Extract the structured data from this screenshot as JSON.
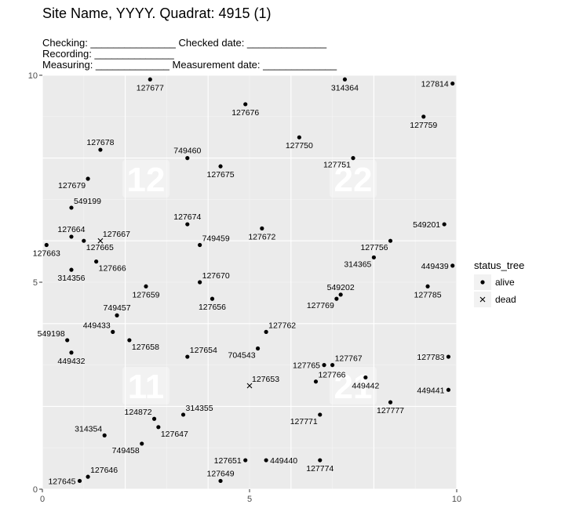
{
  "colors": {
    "panel_bg": "#ebebeb",
    "grid_major": "#ffffff",
    "grid_minor": "#f5f5f5",
    "point": "#000000",
    "tick_text": "#4d4d4d"
  },
  "chart_data": {
    "type": "scatter",
    "title": "Site Name, YYYY. Quadrat: 4915 (1)",
    "form_lines": [
      "Checking: _______________ Checked date: ______________",
      "Recording: ______________",
      "Measuring: _____________ Measurement date: _____________"
    ],
    "xlim": [
      0,
      10
    ],
    "ylim": [
      0,
      10
    ],
    "x_ticks": [
      0,
      5,
      10
    ],
    "y_ticks": [
      0,
      5,
      10
    ],
    "x_tick_labels": [
      "0",
      "5",
      "10"
    ],
    "y_tick_labels": [
      "0",
      "5",
      "10"
    ],
    "grid": true,
    "legend": {
      "title": "status_tree",
      "position": "right",
      "entries": [
        {
          "label": "alive",
          "shape": "dot"
        },
        {
          "label": "dead",
          "shape": "cross"
        }
      ]
    },
    "subquadrat_labels": [
      {
        "label": "12",
        "x": 2.5,
        "y": 7.5
      },
      {
        "label": "22",
        "x": 7.5,
        "y": 7.5
      },
      {
        "label": "11",
        "x": 2.5,
        "y": 2.5
      },
      {
        "label": "21",
        "x": 7.5,
        "y": 2.5
      }
    ],
    "points": [
      {
        "tag": "127677",
        "x": 2.6,
        "y": 9.9,
        "status": "alive",
        "label_pos": "below"
      },
      {
        "tag": "314364",
        "x": 7.3,
        "y": 9.9,
        "status": "alive",
        "label_pos": "below"
      },
      {
        "tag": "127814",
        "x": 9.9,
        "y": 9.8,
        "status": "alive",
        "label_pos": "left"
      },
      {
        "tag": "127676",
        "x": 4.9,
        "y": 9.3,
        "status": "alive",
        "label_pos": "below"
      },
      {
        "tag": "127759",
        "x": 9.2,
        "y": 9.0,
        "status": "alive",
        "label_pos": "below"
      },
      {
        "tag": "127750",
        "x": 6.2,
        "y": 8.5,
        "status": "alive",
        "label_pos": "below"
      },
      {
        "tag": "127678",
        "x": 1.4,
        "y": 8.2,
        "status": "alive",
        "label_pos": "above"
      },
      {
        "tag": "749460",
        "x": 3.5,
        "y": 8.0,
        "status": "alive",
        "label_pos": "above"
      },
      {
        "tag": "127751",
        "x": 7.5,
        "y": 8.0,
        "status": "alive",
        "label_pos": "below-left"
      },
      {
        "tag": "127675",
        "x": 4.3,
        "y": 7.8,
        "status": "alive",
        "label_pos": "below"
      },
      {
        "tag": "127679",
        "x": 1.1,
        "y": 7.5,
        "status": "alive",
        "label_pos": "below-left"
      },
      {
        "tag": "549199",
        "x": 0.7,
        "y": 6.8,
        "status": "alive",
        "label_pos": "above-right"
      },
      {
        "tag": "127674",
        "x": 3.5,
        "y": 6.4,
        "status": "alive",
        "label_pos": "above"
      },
      {
        "tag": "127672",
        "x": 5.3,
        "y": 6.3,
        "status": "alive",
        "label_pos": "below"
      },
      {
        "tag": "549201",
        "x": 9.7,
        "y": 6.4,
        "status": "alive",
        "label_pos": "left"
      },
      {
        "tag": "127664",
        "x": 0.7,
        "y": 6.1,
        "status": "alive",
        "label_pos": "above"
      },
      {
        "tag": "749459",
        "x": 3.8,
        "y": 5.9,
        "status": "alive",
        "label_pos": "above-right"
      },
      {
        "tag": "127756",
        "x": 8.4,
        "y": 6.0,
        "status": "alive",
        "label_pos": "below-left"
      },
      {
        "tag": "127667",
        "x": 1.4,
        "y": 6.0,
        "status": "dead",
        "label_pos": "above-right"
      },
      {
        "tag": "127665",
        "x": 1.0,
        "y": 6.0,
        "status": "alive",
        "label_pos": "below-right"
      },
      {
        "tag": "127663",
        "x": 0.1,
        "y": 5.9,
        "status": "alive",
        "label_pos": "below"
      },
      {
        "tag": "314365",
        "x": 8.0,
        "y": 5.6,
        "status": "alive",
        "label_pos": "below-left"
      },
      {
        "tag": "127666",
        "x": 1.3,
        "y": 5.5,
        "status": "alive",
        "label_pos": "below-right"
      },
      {
        "tag": "449439",
        "x": 9.9,
        "y": 5.4,
        "status": "alive",
        "label_pos": "left"
      },
      {
        "tag": "314356",
        "x": 0.7,
        "y": 5.3,
        "status": "alive",
        "label_pos": "below"
      },
      {
        "tag": "127670",
        "x": 3.8,
        "y": 5.0,
        "status": "alive",
        "label_pos": "above-right"
      },
      {
        "tag": "127659",
        "x": 2.5,
        "y": 4.9,
        "status": "alive",
        "label_pos": "below"
      },
      {
        "tag": "127785",
        "x": 9.3,
        "y": 4.9,
        "status": "alive",
        "label_pos": "below"
      },
      {
        "tag": "549202",
        "x": 7.2,
        "y": 4.7,
        "status": "alive",
        "label_pos": "above"
      },
      {
        "tag": "127656",
        "x": 4.1,
        "y": 4.6,
        "status": "alive",
        "label_pos": "below"
      },
      {
        "tag": "127769",
        "x": 7.1,
        "y": 4.6,
        "status": "alive",
        "label_pos": "below-left"
      },
      {
        "tag": "749457",
        "x": 1.8,
        "y": 4.2,
        "status": "alive",
        "label_pos": "above"
      },
      {
        "tag": "449433",
        "x": 1.7,
        "y": 3.8,
        "status": "alive",
        "label_pos": "above-left"
      },
      {
        "tag": "127762",
        "x": 5.4,
        "y": 3.8,
        "status": "alive",
        "label_pos": "above-right"
      },
      {
        "tag": "549198",
        "x": 0.6,
        "y": 3.6,
        "status": "alive",
        "label_pos": "above-left"
      },
      {
        "tag": "127658",
        "x": 2.1,
        "y": 3.6,
        "status": "alive",
        "label_pos": "below-right"
      },
      {
        "tag": "704543",
        "x": 5.2,
        "y": 3.4,
        "status": "alive",
        "label_pos": "below-left"
      },
      {
        "tag": "449432",
        "x": 0.7,
        "y": 3.3,
        "status": "alive",
        "label_pos": "below"
      },
      {
        "tag": "127654",
        "x": 3.5,
        "y": 3.2,
        "status": "alive",
        "label_pos": "above-right"
      },
      {
        "tag": "127783",
        "x": 9.8,
        "y": 3.2,
        "status": "alive",
        "label_pos": "left"
      },
      {
        "tag": "127765",
        "x": 6.8,
        "y": 3.0,
        "status": "alive",
        "label_pos": "left"
      },
      {
        "tag": "127767",
        "x": 7.0,
        "y": 3.0,
        "status": "alive",
        "label_pos": "above-right"
      },
      {
        "tag": "127766",
        "x": 6.6,
        "y": 2.6,
        "status": "alive",
        "label_pos": "above-right"
      },
      {
        "tag": "449442",
        "x": 7.8,
        "y": 2.7,
        "status": "alive",
        "label_pos": "below"
      },
      {
        "tag": "127653",
        "x": 5.0,
        "y": 2.5,
        "status": "dead",
        "label_pos": "above-right"
      },
      {
        "tag": "449441",
        "x": 9.8,
        "y": 2.4,
        "status": "alive",
        "label_pos": "left"
      },
      {
        "tag": "127777",
        "x": 8.4,
        "y": 2.1,
        "status": "alive",
        "label_pos": "below"
      },
      {
        "tag": "314355",
        "x": 3.4,
        "y": 1.8,
        "status": "alive",
        "label_pos": "above-right"
      },
      {
        "tag": "127771",
        "x": 6.7,
        "y": 1.8,
        "status": "alive",
        "label_pos": "below-left"
      },
      {
        "tag": "124872",
        "x": 2.7,
        "y": 1.7,
        "status": "alive",
        "label_pos": "above-left"
      },
      {
        "tag": "127647",
        "x": 2.8,
        "y": 1.5,
        "status": "alive",
        "label_pos": "below-right"
      },
      {
        "tag": "314354",
        "x": 1.5,
        "y": 1.3,
        "status": "alive",
        "label_pos": "above-left"
      },
      {
        "tag": "749458",
        "x": 2.4,
        "y": 1.1,
        "status": "alive",
        "label_pos": "below-left"
      },
      {
        "tag": "127651",
        "x": 4.9,
        "y": 0.7,
        "status": "alive",
        "label_pos": "left"
      },
      {
        "tag": "449440",
        "x": 5.4,
        "y": 0.7,
        "status": "alive",
        "label_pos": "right"
      },
      {
        "tag": "127774",
        "x": 6.7,
        "y": 0.7,
        "status": "alive",
        "label_pos": "below"
      },
      {
        "tag": "127646",
        "x": 1.1,
        "y": 0.3,
        "status": "alive",
        "label_pos": "above-right"
      },
      {
        "tag": "127649",
        "x": 4.3,
        "y": 0.2,
        "status": "alive",
        "label_pos": "above"
      },
      {
        "tag": "127645",
        "x": 0.9,
        "y": 0.2,
        "status": "alive",
        "label_pos": "left"
      }
    ]
  }
}
